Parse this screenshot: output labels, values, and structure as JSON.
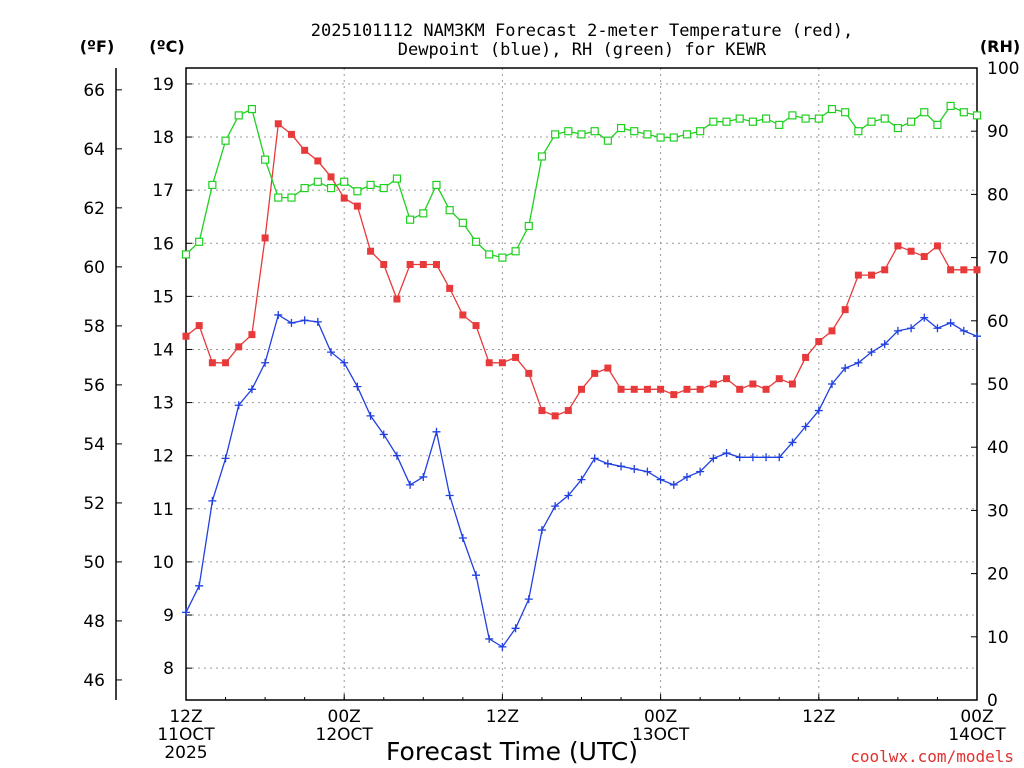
{
  "chart_data": {
    "type": "line",
    "title_lines": [
      "2025101112 NAM3KM Forecast 2-meter Temperature (red),",
      "Dewpoint (blue), RH (green) for KEWR"
    ],
    "xlabel": "Forecast Time (UTC)",
    "credit": "coolwx.com/models",
    "units": {
      "fahrenheit": "(ºF)",
      "celsius": "(ºC)",
      "rh": "(RH)"
    },
    "x_unit": "forecast hour from 2025-10-11 12Z",
    "x_range": [
      0,
      60
    ],
    "x_ticks": [
      {
        "x": 0,
        "lines": [
          "12Z",
          "11OCT",
          "2025"
        ]
      },
      {
        "x": 12,
        "lines": [
          "00Z",
          "12OCT"
        ]
      },
      {
        "x": 24,
        "lines": [
          "12Z"
        ]
      },
      {
        "x": 36,
        "lines": [
          "00Z",
          "13OCT"
        ]
      },
      {
        "x": 48,
        "lines": [
          "12Z"
        ]
      },
      {
        "x": 60,
        "lines": [
          "00Z",
          "14OCT"
        ]
      }
    ],
    "y_celsius": {
      "range": [
        7.4,
        19.3
      ],
      "ticks": [
        8,
        9,
        10,
        11,
        12,
        13,
        14,
        15,
        16,
        17,
        18,
        19
      ]
    },
    "y_fahrenheit": {
      "range": [
        45.32,
        66.74
      ],
      "ticks": [
        46,
        48,
        50,
        52,
        54,
        56,
        58,
        60,
        62,
        64,
        66
      ]
    },
    "y_rh": {
      "range": [
        0,
        100
      ],
      "ticks": [
        0,
        10,
        20,
        30,
        40,
        50,
        60,
        70,
        80,
        90,
        100
      ]
    },
    "grid": true,
    "colors": {
      "temperature": "#e83a3a",
      "dewpoint": "#2040e0",
      "rh": "#20d020",
      "credit": "#e03030"
    },
    "series": [
      {
        "key": "temperature",
        "axis": "celsius",
        "marker": "filled-square",
        "x": [
          0,
          1,
          2,
          3,
          4,
          5,
          6,
          7,
          8,
          9,
          10,
          11,
          12,
          13,
          14,
          15,
          16,
          17,
          18,
          19,
          20,
          21,
          22,
          23,
          24,
          25,
          26,
          27,
          28,
          29,
          30,
          31,
          32,
          33,
          34,
          35,
          36,
          37,
          38,
          39,
          40,
          41,
          42,
          43,
          44,
          45,
          46,
          47,
          48,
          49,
          50,
          51,
          52,
          53,
          54,
          55,
          56,
          57,
          58,
          59,
          60
        ],
        "y": [
          14.25,
          14.45,
          13.75,
          13.75,
          14.05,
          14.28,
          16.1,
          18.25,
          18.05,
          17.75,
          17.55,
          17.25,
          16.85,
          16.7,
          15.85,
          15.6,
          14.95,
          15.6,
          15.6,
          15.6,
          15.15,
          14.65,
          14.45,
          13.75,
          13.75,
          13.85,
          13.55,
          12.85,
          12.75,
          12.85,
          13.25,
          13.55,
          13.65,
          13.25,
          13.25,
          13.25,
          13.25,
          13.15,
          13.25,
          13.25,
          13.35,
          13.45,
          13.25,
          13.35,
          13.25,
          13.45,
          13.35,
          13.85,
          14.15,
          14.35,
          14.75,
          15.4,
          15.4,
          15.5,
          15.95,
          15.85,
          15.75,
          15.95,
          15.5,
          15.5,
          15.5
        ]
      },
      {
        "key": "dewpoint",
        "axis": "celsius",
        "marker": "plus",
        "x": [
          0,
          1,
          2,
          3,
          4,
          5,
          6,
          7,
          8,
          9,
          10,
          11,
          12,
          13,
          14,
          15,
          16,
          17,
          18,
          19,
          20,
          21,
          22,
          23,
          24,
          25,
          26,
          27,
          28,
          29,
          30,
          31,
          32,
          33,
          34,
          35,
          36,
          37,
          38,
          39,
          40,
          41,
          42,
          43,
          44,
          45,
          46,
          47,
          48,
          49,
          50,
          51,
          52,
          53,
          54,
          55,
          56,
          57,
          58,
          59,
          60
        ],
        "y": [
          9.05,
          9.55,
          11.15,
          11.95,
          12.95,
          13.25,
          13.75,
          14.65,
          14.5,
          14.55,
          14.52,
          13.95,
          13.75,
          13.3,
          12.75,
          12.4,
          12.0,
          11.45,
          11.6,
          12.45,
          11.25,
          10.45,
          9.75,
          8.55,
          8.4,
          8.75,
          9.3,
          10.6,
          11.05,
          11.25,
          11.55,
          11.95,
          11.85,
          11.8,
          11.75,
          11.7,
          11.55,
          11.45,
          11.6,
          11.7,
          11.95,
          12.05,
          11.97,
          11.97,
          11.97,
          11.97,
          12.25,
          12.55,
          12.85,
          13.35,
          13.65,
          13.75,
          13.95,
          14.1,
          14.35,
          14.4,
          14.6,
          14.4,
          14.5,
          14.35,
          14.25
        ]
      },
      {
        "key": "rh",
        "axis": "rh",
        "marker": "open-square",
        "x": [
          0,
          1,
          2,
          3,
          4,
          5,
          6,
          7,
          8,
          9,
          10,
          11,
          12,
          13,
          14,
          15,
          16,
          17,
          18,
          19,
          20,
          21,
          22,
          23,
          24,
          25,
          26,
          27,
          28,
          29,
          30,
          31,
          32,
          33,
          34,
          35,
          36,
          37,
          38,
          39,
          40,
          41,
          42,
          43,
          44,
          45,
          46,
          47,
          48,
          49,
          50,
          51,
          52,
          53,
          54,
          55,
          56,
          57,
          58,
          59,
          60
        ],
        "y": [
          70.5,
          72.5,
          81.5,
          88.5,
          92.5,
          93.5,
          85.5,
          79.5,
          79.5,
          81,
          82,
          81,
          82,
          80.5,
          81.5,
          81,
          82.5,
          76,
          77,
          81.5,
          77.5,
          75.5,
          72.5,
          70.5,
          70,
          71,
          75,
          86,
          89.5,
          90,
          89.5,
          90,
          88.5,
          90.5,
          90,
          89.5,
          89,
          89,
          89.5,
          90,
          91.5,
          91.5,
          92,
          91.5,
          92,
          91,
          92.5,
          92,
          92,
          93.5,
          93,
          90,
          91.5,
          92,
          90.5,
          91.5,
          93,
          91,
          94,
          93,
          92.5
        ]
      }
    ]
  }
}
